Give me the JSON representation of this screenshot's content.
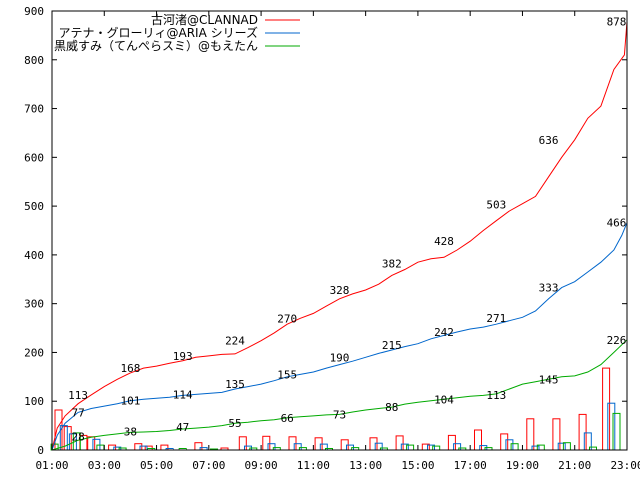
{
  "chart_data": {
    "type": "line",
    "xlabel": "",
    "ylabel": "",
    "ylim": [
      0,
      900
    ],
    "yticks": [
      0,
      100,
      200,
      300,
      400,
      500,
      600,
      700,
      800,
      900
    ],
    "xlim": [
      1,
      23
    ],
    "xticks": [
      {
        "x": 1,
        "label": "01:00"
      },
      {
        "x": 3,
        "label": "03:00"
      },
      {
        "x": 5,
        "label": "05:00"
      },
      {
        "x": 7,
        "label": "07:00"
      },
      {
        "x": 9,
        "label": "09:00"
      },
      {
        "x": 11,
        "label": "11:00"
      },
      {
        "x": 13,
        "label": "13:00"
      },
      {
        "x": 15,
        "label": "15:00"
      },
      {
        "x": 17,
        "label": "17:00"
      },
      {
        "x": 19,
        "label": "19:00"
      },
      {
        "x": 21,
        "label": "21:00"
      },
      {
        "x": 23,
        "label": "23:00"
      }
    ],
    "grid": false,
    "legend_position": "top-right",
    "series": [
      {
        "name": "古河渚@CLANNAD",
        "color": "#ff0000",
        "cumulative": [
          [
            1,
            0
          ],
          [
            1.2,
            45
          ],
          [
            1.5,
            70
          ],
          [
            2,
            95
          ],
          [
            2.5,
            113
          ],
          [
            3,
            130
          ],
          [
            3.5,
            145
          ],
          [
            4,
            158
          ],
          [
            4.5,
            168
          ],
          [
            5,
            172
          ],
          [
            5.5,
            178
          ],
          [
            6,
            183
          ],
          [
            6.5,
            190
          ],
          [
            7,
            193
          ],
          [
            7.5,
            196
          ],
          [
            8,
            197
          ],
          [
            8.5,
            210
          ],
          [
            9,
            224
          ],
          [
            9.5,
            240
          ],
          [
            10,
            258
          ],
          [
            10.5,
            270
          ],
          [
            11,
            280
          ],
          [
            11.5,
            295
          ],
          [
            12,
            310
          ],
          [
            12.5,
            320
          ],
          [
            13,
            328
          ],
          [
            13.5,
            340
          ],
          [
            14,
            358
          ],
          [
            14.5,
            370
          ],
          [
            15,
            385
          ],
          [
            15.5,
            392
          ],
          [
            16,
            395
          ],
          [
            16.5,
            410
          ],
          [
            17,
            428
          ],
          [
            17.5,
            450
          ],
          [
            18,
            470
          ],
          [
            18.5,
            490
          ],
          [
            19,
            505
          ],
          [
            19.5,
            520
          ],
          [
            20,
            560
          ],
          [
            20.5,
            600
          ],
          [
            21,
            636
          ],
          [
            21.5,
            680
          ],
          [
            22,
            705
          ],
          [
            22.5,
            780
          ],
          [
            22.9,
            810
          ],
          [
            23,
            878
          ]
        ],
        "labels": [
          {
            "x": 2,
            "y": 113,
            "text": "113"
          },
          {
            "x": 4,
            "y": 168,
            "text": "168"
          },
          {
            "x": 6,
            "y": 193,
            "text": "193"
          },
          {
            "x": 8,
            "y": 224,
            "text": "224"
          },
          {
            "x": 10,
            "y": 270,
            "text": "270"
          },
          {
            "x": 12,
            "y": 328,
            "text": "328"
          },
          {
            "x": 14,
            "y": 382,
            "text": "382"
          },
          {
            "x": 16,
            "y": 428,
            "text": "428"
          },
          {
            "x": 18,
            "y": 503,
            "text": "503"
          },
          {
            "x": 20,
            "y": 636,
            "text": "636"
          },
          {
            "x": 22.6,
            "y": 878,
            "text": "878"
          }
        ],
        "hourly": [
          {
            "x": 1.25,
            "v": 82
          },
          {
            "x": 1.6,
            "v": 48
          },
          {
            "x": 2.2,
            "v": 30
          },
          {
            "x": 2.5,
            "v": 27
          },
          {
            "x": 3.3,
            "v": 10
          },
          {
            "x": 4.3,
            "v": 13
          },
          {
            "x": 4.7,
            "v": 8
          },
          {
            "x": 5.3,
            "v": 10
          },
          {
            "x": 6.6,
            "v": 15
          },
          {
            "x": 7.6,
            "v": 4
          },
          {
            "x": 8.3,
            "v": 27
          },
          {
            "x": 9.2,
            "v": 28
          },
          {
            "x": 10.2,
            "v": 27
          },
          {
            "x": 11.2,
            "v": 25
          },
          {
            "x": 12.2,
            "v": 21
          },
          {
            "x": 13.3,
            "v": 25
          },
          {
            "x": 14.3,
            "v": 29
          },
          {
            "x": 15.3,
            "v": 12
          },
          {
            "x": 16.3,
            "v": 30
          },
          {
            "x": 17.3,
            "v": 41
          },
          {
            "x": 18.3,
            "v": 33
          },
          {
            "x": 19.3,
            "v": 64
          },
          {
            "x": 20.3,
            "v": 64
          },
          {
            "x": 21.3,
            "v": 73
          },
          {
            "x": 22.2,
            "v": 168
          }
        ]
      },
      {
        "name": "アテナ・グローリィ@ARIA シリーズ",
        "color": "#0066cc",
        "cumulative": [
          [
            1,
            0
          ],
          [
            1.2,
            30
          ],
          [
            1.5,
            55
          ],
          [
            2,
            77
          ],
          [
            2.5,
            85
          ],
          [
            3,
            90
          ],
          [
            3.5,
            95
          ],
          [
            4,
            101
          ],
          [
            4.5,
            104
          ],
          [
            5,
            106
          ],
          [
            5.5,
            108
          ],
          [
            6,
            112
          ],
          [
            6.5,
            114
          ],
          [
            7,
            116
          ],
          [
            7.5,
            118
          ],
          [
            8,
            125
          ],
          [
            8.5,
            130
          ],
          [
            9,
            135
          ],
          [
            9.5,
            142
          ],
          [
            10,
            150
          ],
          [
            10.5,
            155
          ],
          [
            11,
            160
          ],
          [
            11.5,
            168
          ],
          [
            12,
            175
          ],
          [
            12.5,
            182
          ],
          [
            13,
            190
          ],
          [
            13.5,
            198
          ],
          [
            14,
            205
          ],
          [
            14.5,
            212
          ],
          [
            15,
            218
          ],
          [
            15.5,
            228
          ],
          [
            16,
            235
          ],
          [
            16.5,
            242
          ],
          [
            17,
            248
          ],
          [
            17.5,
            252
          ],
          [
            18,
            258
          ],
          [
            18.5,
            265
          ],
          [
            19,
            272
          ],
          [
            19.5,
            285
          ],
          [
            20,
            310
          ],
          [
            20.5,
            333
          ],
          [
            21,
            345
          ],
          [
            21.5,
            365
          ],
          [
            22,
            385
          ],
          [
            22.5,
            410
          ],
          [
            22.8,
            440
          ],
          [
            23,
            466
          ]
        ],
        "labels": [
          {
            "x": 2,
            "y": 77,
            "text": "77"
          },
          {
            "x": 4,
            "y": 101,
            "text": "101"
          },
          {
            "x": 6,
            "y": 114,
            "text": "114"
          },
          {
            "x": 8,
            "y": 135,
            "text": "135"
          },
          {
            "x": 10,
            "y": 155,
            "text": "155"
          },
          {
            "x": 12,
            "y": 190,
            "text": "190"
          },
          {
            "x": 14,
            "y": 215,
            "text": "215"
          },
          {
            "x": 16,
            "y": 242,
            "text": "242"
          },
          {
            "x": 18,
            "y": 271,
            "text": "271"
          },
          {
            "x": 20,
            "y": 333,
            "text": "333"
          },
          {
            "x": 22.6,
            "y": 466,
            "text": "466"
          }
        ],
        "hourly": [
          {
            "x": 1.45,
            "v": 50
          },
          {
            "x": 1.8,
            "v": 33
          },
          {
            "x": 2.7,
            "v": 22
          },
          {
            "x": 3.5,
            "v": 6
          },
          {
            "x": 4.5,
            "v": 8
          },
          {
            "x": 5.5,
            "v": 3
          },
          {
            "x": 6.8,
            "v": 5
          },
          {
            "x": 8.5,
            "v": 8
          },
          {
            "x": 9.4,
            "v": 13
          },
          {
            "x": 10.4,
            "v": 13
          },
          {
            "x": 11.4,
            "v": 12
          },
          {
            "x": 12.4,
            "v": 10
          },
          {
            "x": 13.5,
            "v": 14
          },
          {
            "x": 14.5,
            "v": 12
          },
          {
            "x": 15.5,
            "v": 10
          },
          {
            "x": 16.5,
            "v": 13
          },
          {
            "x": 17.5,
            "v": 9
          },
          {
            "x": 18.5,
            "v": 21
          },
          {
            "x": 19.5,
            "v": 8
          },
          {
            "x": 20.5,
            "v": 14
          },
          {
            "x": 21.5,
            "v": 35
          },
          {
            "x": 22.4,
            "v": 96
          }
        ]
      },
      {
        "name": "黒威すみ（てんぺらスミ）@もえたん",
        "color": "#00aa00",
        "cumulative": [
          [
            1,
            0
          ],
          [
            1.5,
            8
          ],
          [
            2,
            20
          ],
          [
            2.5,
            26
          ],
          [
            3,
            30
          ],
          [
            3.5,
            33
          ],
          [
            4,
            36
          ],
          [
            4.5,
            37
          ],
          [
            5,
            38
          ],
          [
            5.5,
            40
          ],
          [
            6,
            43
          ],
          [
            6.5,
            45
          ],
          [
            7,
            47
          ],
          [
            7.5,
            50
          ],
          [
            8,
            55
          ],
          [
            8.5,
            57
          ],
          [
            9,
            60
          ],
          [
            9.5,
            62
          ],
          [
            10,
            66
          ],
          [
            10.5,
            68
          ],
          [
            11,
            70
          ],
          [
            11.5,
            72
          ],
          [
            12,
            73
          ],
          [
            12.5,
            78
          ],
          [
            13,
            82
          ],
          [
            13.5,
            85
          ],
          [
            14,
            88
          ],
          [
            14.5,
            94
          ],
          [
            15,
            98
          ],
          [
            15.5,
            101
          ],
          [
            16,
            104
          ],
          [
            16.5,
            107
          ],
          [
            17,
            110
          ],
          [
            17.5,
            112
          ],
          [
            18,
            115
          ],
          [
            18.5,
            125
          ],
          [
            19,
            135
          ],
          [
            19.5,
            140
          ],
          [
            20,
            145
          ],
          [
            20.5,
            150
          ],
          [
            21,
            152
          ],
          [
            21.5,
            160
          ],
          [
            22,
            175
          ],
          [
            22.5,
            200
          ],
          [
            23,
            226
          ]
        ],
        "labels": [
          {
            "x": 2,
            "y": 28,
            "text": "28"
          },
          {
            "x": 4,
            "y": 38,
            "text": "38"
          },
          {
            "x": 6,
            "y": 47,
            "text": "47"
          },
          {
            "x": 8,
            "y": 55,
            "text": "55"
          },
          {
            "x": 10,
            "y": 66,
            "text": "66"
          },
          {
            "x": 12,
            "y": 73,
            "text": "73"
          },
          {
            "x": 14,
            "y": 88,
            "text": "88"
          },
          {
            "x": 16,
            "y": 104,
            "text": "104"
          },
          {
            "x": 18,
            "y": 113,
            "text": "113"
          },
          {
            "x": 20,
            "y": 145,
            "text": "145"
          },
          {
            "x": 22.6,
            "y": 226,
            "text": "226"
          }
        ],
        "hourly": [
          {
            "x": 1.1,
            "v": 12
          },
          {
            "x": 1.95,
            "v": 35
          },
          {
            "x": 2.85,
            "v": 10
          },
          {
            "x": 3.7,
            "v": 4
          },
          {
            "x": 4.8,
            "v": 3
          },
          {
            "x": 6.0,
            "v": 3
          },
          {
            "x": 7.2,
            "v": 2
          },
          {
            "x": 8.7,
            "v": 4
          },
          {
            "x": 9.6,
            "v": 5
          },
          {
            "x": 10.6,
            "v": 5
          },
          {
            "x": 11.6,
            "v": 3
          },
          {
            "x": 12.6,
            "v": 5
          },
          {
            "x": 13.7,
            "v": 4
          },
          {
            "x": 14.7,
            "v": 10
          },
          {
            "x": 15.7,
            "v": 8
          },
          {
            "x": 16.7,
            "v": 4
          },
          {
            "x": 17.7,
            "v": 5
          },
          {
            "x": 18.7,
            "v": 13
          },
          {
            "x": 19.7,
            "v": 10
          },
          {
            "x": 20.7,
            "v": 15
          },
          {
            "x": 21.7,
            "v": 6
          },
          {
            "x": 22.6,
            "v": 75
          }
        ]
      }
    ]
  }
}
